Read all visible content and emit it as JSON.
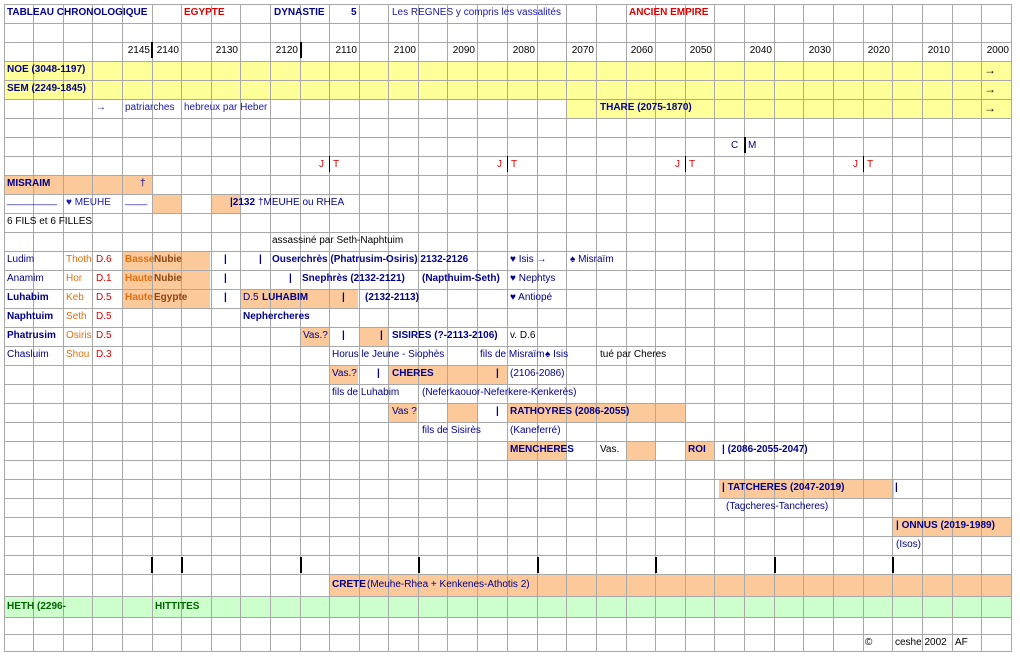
{
  "header": {
    "title": "TABLEAU CHRONOLOGIQUE",
    "country": "EGYPTE",
    "dynasty_label": "DYNASTIE",
    "dynasty_number": "5",
    "subtitle": "Les REGNES y compris les vassalités",
    "period": "ANCIEN EMPIRE"
  },
  "years": [
    "2145",
    "2140",
    "2130",
    "2120",
    "2110",
    "2100",
    "2090",
    "2080",
    "2070",
    "2060",
    "2050",
    "2040",
    "2030",
    "2020",
    "2010",
    "2000"
  ],
  "patriarchs": {
    "noe": "NOE   (3048-1197)",
    "sem": "SEM   (2249-1845)",
    "arrow_small": "→",
    "patriarches": "patriarches",
    "hebreux": "hebreux par Heber",
    "thare": "THARE (2075-1870)",
    "arrow": "→"
  },
  "markers": {
    "c": "C",
    "m": "M",
    "j": "J",
    "t": "T"
  },
  "misraim": {
    "name": "MISRAIM",
    "cross": "†",
    "blank": "_________",
    "meuhe": "♥ MEUHE",
    "underline": "____",
    "date_2132": "|2132",
    "meuhe_rhea": "†MEUHE ou RHEA",
    "fils": "6 FILS et 6 FILLES",
    "assassine": "assassiné par Seth-Naphtuim"
  },
  "sons": [
    {
      "name": "Ludim",
      "god": "Thoth",
      "dyn": "D.6",
      "region1": "Basse",
      "region2": "Nubie"
    },
    {
      "name": "Anamim",
      "god": "Hor",
      "dyn": "D.1",
      "region1": "Haute",
      "region2": "Nubie"
    },
    {
      "name": "Luhabim",
      "god": "Keb",
      "dyn": "D.5",
      "region1": "Haute",
      "region2": "Egypte"
    },
    {
      "name": "Naphtuim",
      "god": "Seth",
      "dyn": "D.5"
    },
    {
      "name": "Phatrusim",
      "god": "Osiris",
      "dyn": "D.5"
    },
    {
      "name": "Chasluim",
      "god": "Shou",
      "dyn": "D.3"
    }
  ],
  "reigns": {
    "bar": "|",
    "ouserchres": "Ouserchrès (Phatrusim-Osiris) 2132-2126",
    "isis": "♥ Isis →",
    "misraim_spade": "♠ Misraïm",
    "snephres": "Snephrès (2132-2121)",
    "napthuim_seth": "(Napthuim-Seth)",
    "nephtys": "♥ Nephtys",
    "d5": "D.5",
    "luhabim": "LUHABIM",
    "luhabim_dates": "(2132-2113)",
    "antiope": "♥ Antiopé",
    "nephercheres": "Nephercheres",
    "vas_q": "Vas.?",
    "sisires": "SISIRES (?-2113-2106)",
    "vd6": "v. D.6",
    "horus": "Horus le Jeune - Siophès",
    "fils_misraim": "fils de Misraïm",
    "isis2": "♠ Isis",
    "tue": "tué par Cheres",
    "cheres": "CHERES",
    "cheres_dates": "(2106-2086)",
    "fils_luhabim": "fils de Luhabim",
    "nefer": "(Neferkaouor-Neferkere-Kenkerès)",
    "vas_q2": "Vas ?",
    "rathoyres": "RATHOYRES (2086-2055)",
    "fils_sisires": "fils de Sisirès",
    "kaneferre": "(Kaneferré)",
    "mencheres": "MENCHERES",
    "vas": "Vas.",
    "roi": "ROI",
    "roi_dates": "| (2086-2055-2047)",
    "tatcheres": "| TATCHERES (2047-2019)",
    "tatcheres_alt": "(Tagcheres-Tancheres)",
    "onnus": "| ONNUS (2019-1989)",
    "isos": "(Isos)"
  },
  "crete": {
    "name": "CRETE",
    "desc": "(Meuhe-Rhea + Kenkenes-Athotis 2)"
  },
  "heth": {
    "name": "HETH (2296-",
    "hittites": "HITTITES"
  },
  "footer": {
    "copyright": "©",
    "author": "ceshe 2002",
    "initials": "AF"
  },
  "colors": {
    "yellow": "#ffff99",
    "green": "#ccffcc",
    "peach": "#fcc99b",
    "navy": "#00008b",
    "red": "#dd0000",
    "orange": "#e07010"
  }
}
